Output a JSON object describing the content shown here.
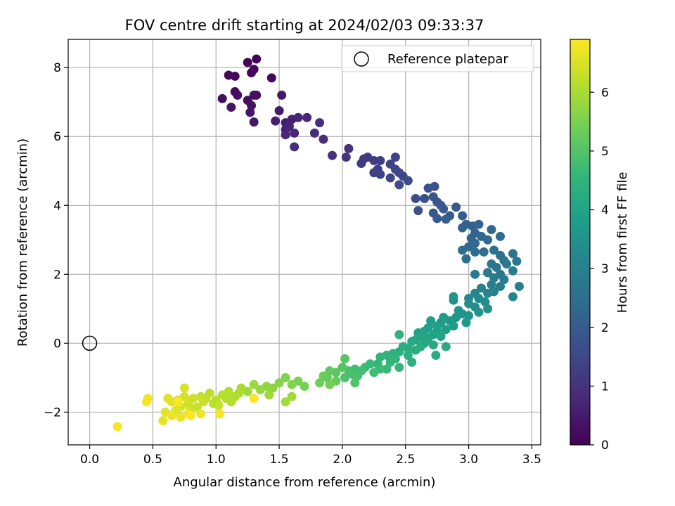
{
  "chart_data": {
    "type": "scatter",
    "title": "FOV centre drift starting at 2024/02/03 09:33:37",
    "xlabel": "Angular distance from reference (arcmin)",
    "ylabel": "Rotation from reference (arcmin)",
    "xlim": [
      -0.17,
      3.57
    ],
    "ylim": [
      -2.95,
      8.82
    ],
    "xticks": [
      0.0,
      0.5,
      1.0,
      1.5,
      2.0,
      2.5,
      3.0,
      3.5
    ],
    "xtick_labels": [
      "0.0",
      "0.5",
      "1.0",
      "1.5",
      "2.0",
      "2.5",
      "3.0",
      "3.5"
    ],
    "yticks": [
      -2,
      0,
      2,
      4,
      6,
      8
    ],
    "ytick_labels": [
      "−2",
      "0",
      "2",
      "4",
      "6",
      "8"
    ],
    "grid": true,
    "legend": {
      "position": "top-right",
      "label": "Reference platepar"
    },
    "colorbar": {
      "label": "Hours from first FF file",
      "range": [
        0,
        6.9
      ],
      "ticks": [
        0,
        1,
        2,
        3,
        4,
        5,
        6
      ],
      "tick_labels": [
        "0",
        "1",
        "2",
        "3",
        "4",
        "5",
        "6"
      ],
      "colormap": "viridis"
    },
    "colors": {
      "viridis": [
        "#440154",
        "#482878",
        "#3e4989",
        "#31688e",
        "#26828e",
        "#1f9e89",
        "#35b779",
        "#6ece58",
        "#b5de2b",
        "#fde725"
      ],
      "grid": "#b0b0b0",
      "reference_marker": "#000000"
    },
    "reference_point": {
      "x": 0.0,
      "y": 0.0
    },
    "series": [
      {
        "points": [
          [
            1.25,
            8.15,
            0.05
          ],
          [
            1.32,
            8.25,
            0.08
          ],
          [
            1.28,
            7.85,
            0.1
          ],
          [
            1.3,
            7.95,
            0.12
          ],
          [
            1.1,
            7.78,
            0.15
          ],
          [
            1.15,
            7.75,
            0.17
          ],
          [
            1.44,
            7.7,
            0.2
          ],
          [
            1.15,
            7.3,
            0.22
          ],
          [
            1.17,
            7.2,
            0.25
          ],
          [
            1.05,
            7.1,
            0.27
          ],
          [
            1.25,
            7.05,
            0.28
          ],
          [
            1.3,
            7.2,
            0.3
          ],
          [
            1.32,
            7.2,
            0.32
          ],
          [
            1.28,
            6.9,
            0.35
          ],
          [
            1.12,
            6.85,
            0.37
          ],
          [
            1.27,
            6.7,
            0.4
          ],
          [
            1.3,
            6.42,
            0.42
          ],
          [
            1.52,
            7.2,
            0.45
          ],
          [
            1.5,
            6.75,
            0.5
          ],
          [
            1.47,
            6.45,
            0.55
          ],
          [
            1.55,
            6.4,
            0.58
          ],
          [
            1.6,
            6.5,
            0.62
          ],
          [
            1.55,
            6.2,
            0.65
          ],
          [
            1.65,
            6.55,
            0.7
          ],
          [
            1.58,
            6.3,
            0.72
          ],
          [
            1.62,
            6.1,
            0.75
          ],
          [
            1.55,
            6.05,
            0.78
          ],
          [
            1.72,
            6.55,
            0.8
          ],
          [
            1.78,
            6.1,
            0.85
          ],
          [
            1.82,
            6.4,
            0.88
          ],
          [
            1.85,
            5.92,
            0.9
          ],
          [
            1.62,
            5.7,
            0.92
          ],
          [
            1.92,
            5.45,
            0.98
          ],
          [
            2.05,
            5.65,
            1.05
          ],
          [
            2.03,
            5.4,
            1.08
          ],
          [
            2.17,
            5.35,
            1.15
          ],
          [
            2.2,
            5.4,
            1.18
          ],
          [
            2.15,
            5.22,
            1.2
          ],
          [
            2.25,
            5.3,
            1.25
          ],
          [
            2.3,
            5.3,
            1.28
          ],
          [
            2.28,
            5.05,
            1.3
          ],
          [
            2.25,
            4.95,
            1.32
          ],
          [
            2.3,
            4.9,
            1.35
          ],
          [
            2.38,
            5.2,
            1.38
          ],
          [
            2.42,
            5.4,
            1.4
          ],
          [
            2.42,
            5.05,
            1.45
          ],
          [
            2.38,
            4.8,
            1.48
          ],
          [
            2.45,
            4.95,
            1.5
          ],
          [
            2.48,
            4.85,
            1.52
          ],
          [
            2.45,
            4.6,
            1.55
          ],
          [
            2.52,
            4.72,
            1.58
          ],
          [
            2.58,
            4.2,
            1.65
          ],
          [
            2.65,
            4.2,
            1.7
          ],
          [
            2.6,
            3.85,
            1.72
          ],
          [
            2.68,
            4.5,
            1.75
          ],
          [
            2.73,
            4.55,
            1.78
          ],
          [
            2.72,
            4.25,
            1.82
          ],
          [
            2.75,
            4.1,
            1.85
          ],
          [
            2.78,
            4.0,
            1.88
          ],
          [
            2.72,
            3.78,
            1.9
          ],
          [
            2.8,
            3.9,
            1.92
          ],
          [
            2.85,
            3.7,
            1.95
          ],
          [
            2.75,
            3.62,
            1.98
          ],
          [
            2.9,
            3.95,
            2.0
          ],
          [
            2.82,
            3.6,
            2.02
          ],
          [
            2.95,
            3.7,
            2.05
          ],
          [
            2.98,
            3.45,
            2.1
          ],
          [
            2.95,
            3.35,
            2.15
          ],
          [
            3.03,
            3.4,
            2.18
          ],
          [
            3.05,
            3.2,
            2.2
          ],
          [
            3.08,
            3.45,
            2.22
          ],
          [
            3.02,
            3.05,
            2.25
          ],
          [
            3.1,
            3.1,
            2.28
          ],
          [
            3.05,
            2.9,
            2.3
          ],
          [
            3.0,
            2.8,
            2.35
          ],
          [
            3.18,
            3.3,
            2.38
          ],
          [
            3.15,
            3.0,
            2.4
          ],
          [
            3.25,
            3.1,
            2.42
          ],
          [
            2.95,
            2.7,
            2.45
          ],
          [
            3.05,
            2.65,
            2.48
          ],
          [
            3.12,
            2.65,
            2.5
          ],
          [
            2.98,
            2.45,
            2.55
          ],
          [
            3.2,
            2.7,
            2.58
          ],
          [
            3.25,
            2.55,
            2.6
          ],
          [
            3.28,
            2.4,
            2.62
          ],
          [
            3.35,
            2.6,
            2.65
          ],
          [
            3.18,
            2.3,
            2.68
          ],
          [
            3.22,
            2.2,
            2.7
          ],
          [
            3.38,
            2.38,
            2.72
          ],
          [
            3.3,
            2.3,
            2.75
          ],
          [
            3.25,
            2.0,
            2.78
          ],
          [
            3.05,
            2.0,
            2.8
          ],
          [
            3.15,
            2.05,
            2.82
          ],
          [
            3.2,
            1.9,
            2.85
          ],
          [
            3.28,
            1.85,
            2.88
          ],
          [
            3.35,
            2.1,
            2.9
          ],
          [
            3.18,
            1.7,
            2.95
          ],
          [
            3.25,
            1.65,
            2.98
          ],
          [
            3.4,
            1.65,
            3.0
          ],
          [
            3.1,
            1.6,
            3.02
          ],
          [
            3.2,
            1.5,
            3.05
          ],
          [
            3.05,
            1.45,
            3.1
          ],
          [
            3.15,
            1.45,
            3.12
          ],
          [
            3.35,
            1.35,
            3.15
          ],
          [
            3.0,
            1.3,
            3.2
          ],
          [
            3.08,
            1.3,
            3.25
          ],
          [
            3.13,
            1.2,
            3.3
          ],
          [
            2.88,
            1.25,
            3.35
          ],
          [
            3.0,
            1.15,
            3.38
          ],
          [
            3.05,
            1.05,
            3.4
          ],
          [
            3.15,
            1.0,
            3.45
          ],
          [
            2.92,
            0.95,
            3.5
          ],
          [
            3.08,
            0.9,
            3.52
          ],
          [
            2.95,
            0.85,
            3.55
          ],
          [
            3.0,
            0.8,
            3.58
          ],
          [
            2.9,
            0.75,
            3.6
          ],
          [
            2.88,
            1.35,
            3.62
          ],
          [
            2.98,
            0.6,
            3.65
          ],
          [
            2.85,
            0.65,
            3.7
          ],
          [
            2.8,
            0.75,
            3.72
          ],
          [
            2.78,
            0.6,
            3.75
          ],
          [
            2.88,
            0.5,
            3.78
          ],
          [
            2.75,
            0.5,
            3.8
          ],
          [
            2.7,
            0.65,
            3.82
          ],
          [
            2.82,
            0.4,
            3.85
          ],
          [
            2.68,
            0.45,
            3.88
          ],
          [
            2.75,
            0.35,
            3.9
          ],
          [
            2.65,
            0.35,
            3.92
          ],
          [
            2.72,
            0.25,
            3.95
          ],
          [
            2.6,
            0.3,
            3.98
          ],
          [
            2.78,
            0.2,
            4.0
          ],
          [
            2.68,
            0.15,
            4.02
          ],
          [
            2.62,
            0.2,
            4.05
          ],
          [
            2.58,
            0.1,
            4.08
          ],
          [
            2.65,
            0.0,
            4.1
          ],
          [
            2.72,
            -0.05,
            4.12
          ],
          [
            2.55,
            0.05,
            4.15
          ],
          [
            2.62,
            -0.1,
            4.18
          ],
          [
            2.82,
            -0.1,
            4.2
          ],
          [
            2.52,
            -0.15,
            4.22
          ],
          [
            2.58,
            -0.2,
            4.25
          ],
          [
            2.48,
            -0.1,
            4.28
          ],
          [
            2.74,
            -0.35,
            4.3
          ],
          [
            2.45,
            -0.25,
            4.32
          ],
          [
            2.52,
            -0.35,
            4.35
          ],
          [
            2.4,
            -0.3,
            4.38
          ],
          [
            2.55,
            -0.55,
            4.4
          ],
          [
            2.35,
            -0.35,
            4.42
          ],
          [
            2.45,
            0.25,
            4.45
          ],
          [
            2.42,
            -0.45,
            4.48
          ],
          [
            2.3,
            -0.4,
            4.5
          ],
          [
            2.38,
            -0.55,
            4.52
          ],
          [
            2.45,
            -0.7,
            4.55
          ],
          [
            2.28,
            -0.6,
            4.58
          ],
          [
            2.35,
            -0.75,
            4.62
          ],
          [
            2.22,
            -0.6,
            4.65
          ],
          [
            2.3,
            -0.75,
            4.68
          ],
          [
            2.18,
            -0.7,
            4.7
          ],
          [
            2.25,
            -0.85,
            4.72
          ],
          [
            2.15,
            -0.8,
            4.75
          ],
          [
            2.1,
            -0.75,
            4.78
          ],
          [
            2.08,
            -0.9,
            4.82
          ],
          [
            2.12,
            -0.95,
            4.85
          ],
          [
            2.05,
            -0.8,
            4.88
          ],
          [
            2.02,
            -1.0,
            4.92
          ],
          [
            2.1,
            -1.15,
            4.95
          ],
          [
            2.0,
            -0.7,
            5.0
          ],
          [
            2.02,
            -0.45,
            5.05
          ],
          [
            1.95,
            -0.85,
            5.1
          ],
          [
            1.9,
            -0.8,
            5.15
          ],
          [
            1.88,
            -1.0,
            5.2
          ],
          [
            1.95,
            -1.1,
            5.25
          ],
          [
            1.85,
            -0.95,
            5.3
          ],
          [
            1.82,
            -1.15,
            5.35
          ],
          [
            1.9,
            -1.2,
            5.4
          ],
          [
            1.7,
            -1.25,
            5.45
          ],
          [
            1.65,
            -1.1,
            5.5
          ],
          [
            1.55,
            -1.0,
            5.55
          ],
          [
            1.6,
            -1.2,
            5.6
          ],
          [
            1.5,
            -1.15,
            5.65
          ],
          [
            1.45,
            -1.3,
            5.7
          ],
          [
            1.4,
            -1.25,
            5.75
          ],
          [
            1.35,
            -1.35,
            5.8
          ],
          [
            1.3,
            -1.2,
            5.85
          ],
          [
            1.42,
            -1.5,
            5.88
          ],
          [
            1.25,
            -1.4,
            5.9
          ],
          [
            1.6,
            -1.55,
            5.92
          ],
          [
            1.55,
            -1.7,
            5.95
          ],
          [
            1.2,
            -1.3,
            6.0
          ],
          [
            1.18,
            -1.45,
            6.02
          ],
          [
            1.15,
            -1.55,
            6.05
          ],
          [
            1.1,
            -1.4,
            6.08
          ],
          [
            1.08,
            -1.6,
            6.1
          ],
          [
            1.12,
            -1.7,
            6.12
          ],
          [
            1.05,
            -1.5,
            6.15
          ],
          [
            1.0,
            -1.65,
            6.18
          ],
          [
            0.95,
            -1.45,
            6.2
          ],
          [
            0.98,
            -1.75,
            6.22
          ],
          [
            0.92,
            -1.6,
            6.25
          ],
          [
            1.02,
            -1.8,
            6.28
          ],
          [
            0.88,
            -1.55,
            6.3
          ],
          [
            0.85,
            -1.85,
            6.32
          ],
          [
            0.9,
            -1.7,
            6.35
          ],
          [
            0.82,
            -1.6,
            6.38
          ],
          [
            0.8,
            -1.9,
            6.4
          ],
          [
            0.78,
            -1.75,
            6.42
          ],
          [
            0.75,
            -1.55,
            6.45
          ],
          [
            0.72,
            -1.85,
            6.48
          ],
          [
            0.75,
            -1.3,
            6.5
          ],
          [
            0.7,
            -1.65,
            6.52
          ],
          [
            0.68,
            -1.95,
            6.55
          ],
          [
            0.65,
            -1.7,
            6.58
          ],
          [
            0.62,
            -1.6,
            6.6
          ],
          [
            0.6,
            -2.0,
            6.62
          ],
          [
            0.58,
            -2.25,
            6.65
          ],
          [
            0.65,
            -2.1,
            6.68
          ],
          [
            0.72,
            -2.15,
            6.7
          ],
          [
            0.78,
            -2.05,
            6.72
          ],
          [
            0.88,
            -2.05,
            6.75
          ],
          [
            0.46,
            -1.6,
            6.78
          ],
          [
            0.45,
            -1.7,
            6.8
          ],
          [
            0.22,
            -2.42,
            6.82
          ],
          [
            1.03,
            -2.05,
            6.85
          ],
          [
            1.3,
            -1.6,
            6.86
          ],
          [
            0.7,
            -1.7,
            6.88
          ],
          [
            0.8,
            -2.1,
            6.9
          ]
        ]
      }
    ]
  }
}
